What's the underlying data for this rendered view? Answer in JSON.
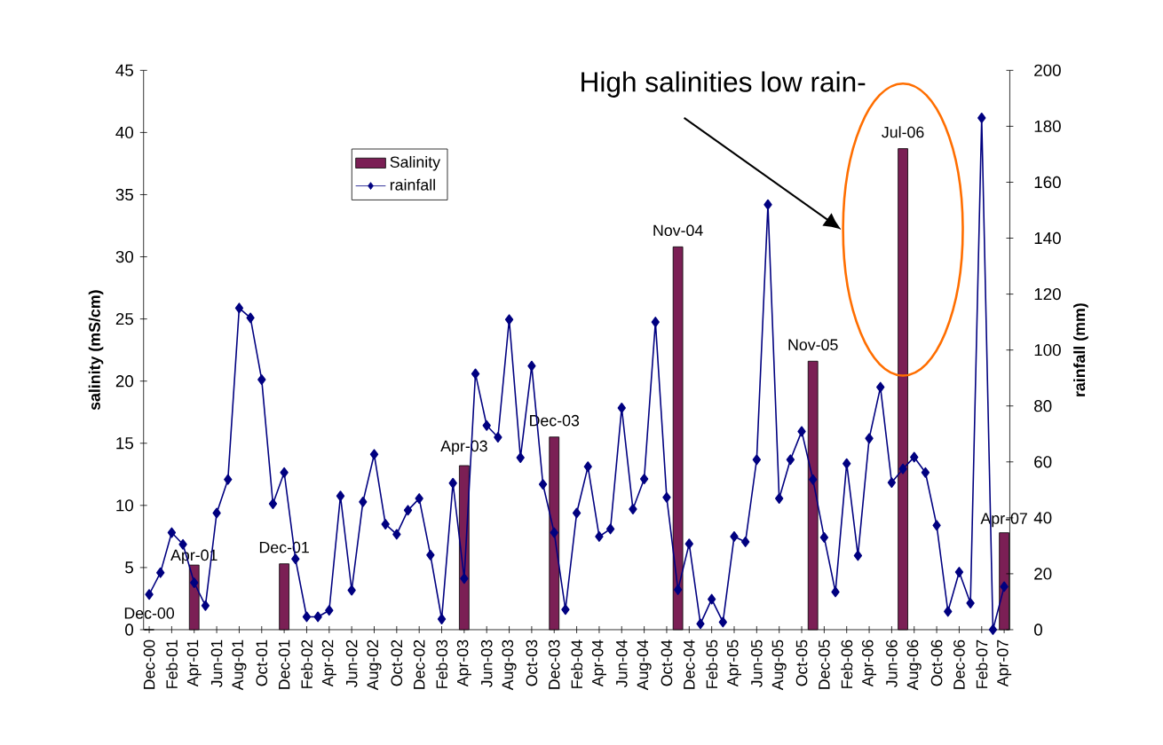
{
  "chart_data": {
    "type": "bar",
    "annotations": [
      "High salinities low rain-"
    ],
    "ylabel": "salinity (mS/cm)",
    "y2label": "rainfall (mm)",
    "categories": [
      "Dec-00",
      null,
      "Feb-01",
      null,
      "Apr-01",
      null,
      "Jun-01",
      null,
      "Aug-01",
      null,
      "Oct-01",
      null,
      "Dec-01",
      null,
      "Feb-02",
      null,
      "Apr-02",
      null,
      "Jun-02",
      null,
      "Aug-02",
      null,
      "Oct-02",
      null,
      "Dec-02",
      null,
      "Feb-03",
      null,
      "Apr-03",
      null,
      "Jun-03",
      null,
      "Aug-03",
      null,
      "Oct-03",
      null,
      "Dec-03",
      null,
      "Feb-04",
      null,
      "Apr-04",
      null,
      "Jun-04",
      null,
      "Aug-04",
      null,
      "Oct-04",
      null,
      "Dec-04",
      null,
      "Feb-05",
      null,
      "Apr-05",
      null,
      "Jun-05",
      null,
      "Aug-05",
      null,
      "Oct-05",
      null,
      "Dec-05",
      null,
      "Feb-06",
      null,
      "Apr-06",
      null,
      "Jun-06",
      null,
      "Aug-06",
      null,
      "Oct-06",
      null,
      "Dec-06",
      null,
      "Feb-07",
      null,
      "Apr-07"
    ],
    "series": [
      {
        "name": "Salinity",
        "type": "bar",
        "color": "#7b1f55",
        "values": [
          0,
          null,
          null,
          null,
          5.2,
          null,
          null,
          null,
          null,
          null,
          null,
          null,
          5.3,
          null,
          null,
          null,
          null,
          null,
          null,
          null,
          null,
          null,
          null,
          null,
          null,
          null,
          null,
          null,
          13.2,
          null,
          null,
          null,
          null,
          null,
          null,
          null,
          15.5,
          null,
          null,
          null,
          null,
          null,
          null,
          null,
          null,
          null,
          null,
          30.8,
          null,
          null,
          null,
          null,
          null,
          null,
          null,
          null,
          null,
          null,
          null,
          21.6,
          null,
          null,
          null,
          null,
          null,
          null,
          null,
          38.7,
          null,
          null,
          null,
          null,
          null,
          null,
          null,
          null,
          7.8
        ],
        "value_labels": [
          "Dec-00",
          null,
          null,
          null,
          "Apr-01",
          null,
          null,
          null,
          null,
          null,
          null,
          null,
          "Dec-01",
          null,
          null,
          null,
          null,
          null,
          null,
          null,
          null,
          null,
          null,
          null,
          null,
          null,
          null,
          null,
          "Apr-03",
          null,
          null,
          null,
          null,
          null,
          null,
          null,
          "Dec-03",
          null,
          null,
          null,
          null,
          null,
          null,
          null,
          null,
          null,
          null,
          "Nov-04",
          null,
          null,
          null,
          null,
          null,
          null,
          null,
          null,
          null,
          null,
          null,
          "Nov-05",
          null,
          null,
          null,
          null,
          null,
          null,
          null,
          "Jul-06",
          null,
          null,
          null,
          null,
          null,
          null,
          null,
          null,
          "Apr-07"
        ]
      },
      {
        "name": "rainfall",
        "type": "line",
        "axis": "y2",
        "color": "#000080",
        "marker": "diamond",
        "line_style": "solid",
        "values": [
          12.6,
          20.4,
          34.7,
          30.5,
          16.8,
          8.6,
          41.7,
          53.7,
          115,
          111.5,
          89.4,
          45,
          56.2,
          25.3,
          4.6,
          4.6,
          6.9,
          47.8,
          14.1,
          45.7,
          62.7,
          37.7,
          34.1,
          42.7,
          46.9,
          26.7,
          3.8,
          52.4,
          18.3,
          91.5,
          73,
          68.8,
          110.9,
          61.5,
          94.3,
          52,
          34.7,
          7.2,
          41.7,
          58.3,
          33.3,
          36,
          79.3,
          43.1,
          53.9,
          110,
          47.3,
          14.3,
          30.7,
          2.1,
          10.9,
          2.7,
          33.3,
          31.4,
          60.8,
          152,
          46.9,
          60.8,
          70.9,
          53.7,
          33,
          13.5,
          59.4,
          26.5,
          68.4,
          86.7,
          52.6,
          57.5,
          61.7,
          56.2,
          37.3,
          6.5,
          20.6,
          9.5,
          183,
          0,
          15.4
        ]
      }
    ],
    "ylim": [
      0,
      45
    ],
    "yticks": [
      0,
      5,
      10,
      15,
      20,
      25,
      30,
      35,
      40,
      45
    ],
    "y2lim": [
      0,
      200
    ],
    "y2ticks": [
      0,
      20,
      40,
      60,
      80,
      100,
      120,
      140,
      160,
      180,
      200
    ],
    "legend": "top left",
    "grid": false
  }
}
